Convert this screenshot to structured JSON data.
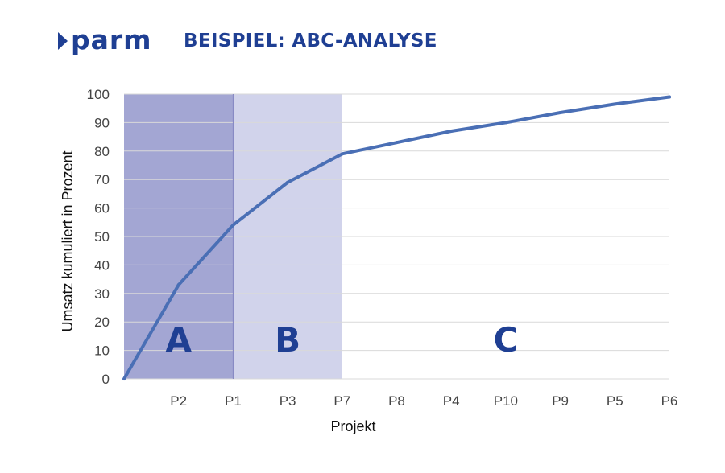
{
  "header": {
    "logo_text": "parm",
    "title": "BEISPIEL: ABC-ANALYSE"
  },
  "colors": {
    "brand": "#1f3f93",
    "line": "#4a6fb5",
    "zone_a": "#a3a6d3",
    "zone_b": "#d1d3eb",
    "grid": "#d9d9d9"
  },
  "chart_data": {
    "type": "line",
    "title": "",
    "xlabel": "Projekt",
    "ylabel": "Umsatz kumuliert in Prozent",
    "categories": [
      "P2",
      "P1",
      "P3",
      "P7",
      "P8",
      "P4",
      "P10",
      "P9",
      "P5",
      "P6"
    ],
    "series": [
      {
        "values": [
          33,
          54,
          69,
          79,
          83,
          87,
          90,
          93.5,
          96.5,
          99
        ]
      }
    ],
    "origin": 0,
    "ylim": [
      0,
      100
    ],
    "yticks": [
      0,
      10,
      20,
      30,
      40,
      50,
      60,
      70,
      80,
      90,
      100
    ],
    "grid": true,
    "zones": [
      {
        "label": "A",
        "from": 0,
        "to": 2
      },
      {
        "label": "B",
        "from": 2,
        "to": 4
      },
      {
        "label": "C",
        "from": 4,
        "to": 10
      }
    ]
  }
}
